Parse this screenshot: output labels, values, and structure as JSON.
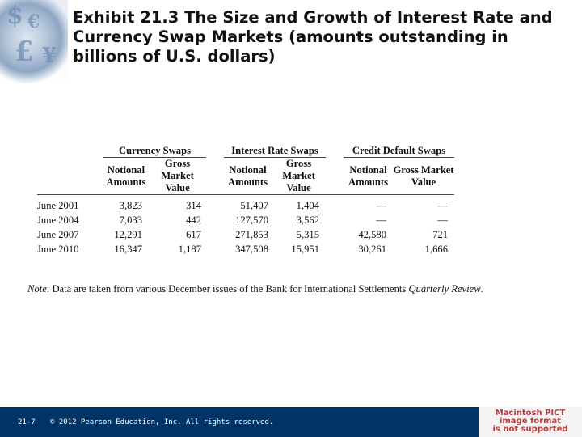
{
  "title": "Exhibit 21.3  The Size and Growth of Interest Rate and Currency Swap Markets (amounts outstanding in billions of U.S. dollars)",
  "groups": [
    "Currency Swaps",
    "Interest Rate Swaps",
    "Credit Default Swaps"
  ],
  "subheaders": {
    "notional": [
      "Notional",
      "Amounts"
    ],
    "gross": [
      "Gross Market",
      "Value"
    ]
  },
  "rows": [
    {
      "label": "June 2001",
      "values": [
        "3,823",
        "314",
        "51,407",
        "1,404",
        "—",
        "—"
      ]
    },
    {
      "label": "June 2004",
      "values": [
        "7,033",
        "442",
        "127,570",
        "3,562",
        "—",
        "—"
      ]
    },
    {
      "label": "June 2007",
      "values": [
        "12,291",
        "617",
        "271,853",
        "5,315",
        "42,580",
        "721"
      ]
    },
    {
      "label": "June 2010",
      "values": [
        "16,347",
        "1,187",
        "347,508",
        "15,951",
        "30,261",
        "1,666"
      ]
    }
  ],
  "note": {
    "lead": "Note",
    "text": ": Data are taken from various December issues of the Bank for International Settlements ",
    "source": "Quarterly Review",
    "end": "."
  },
  "footer": {
    "page": "21-7",
    "copyright": "© 2012 Pearson Education, Inc. All rights reserved.",
    "pict": [
      "Macintosh PICT",
      "image format",
      "is not supported"
    ]
  },
  "colors": {
    "footer": "#003366",
    "pict_text": "#b34040"
  }
}
